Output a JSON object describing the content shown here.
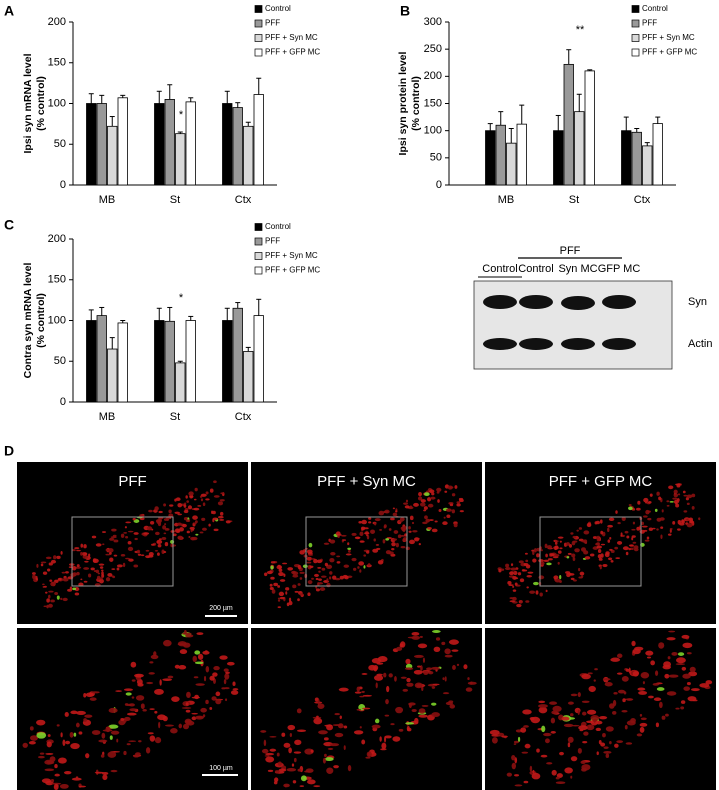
{
  "chart_data": [
    {
      "type": "bar",
      "panel": "A",
      "ylabel": [
        "Ipsi syn mRNA level",
        "(% control)"
      ],
      "categories": [
        "MB",
        "St",
        "Ctx"
      ],
      "ylim": [
        0,
        200
      ],
      "yticks": [
        0,
        50,
        100,
        150,
        200
      ],
      "annotations": [
        "*"
      ],
      "series": [
        {
          "name": "Control",
          "color": "#000000",
          "values": [
            100,
            100,
            100
          ],
          "errors": [
            12,
            15,
            15
          ]
        },
        {
          "name": "PFF",
          "color": "#999999",
          "values": [
            100,
            105,
            95
          ],
          "errors": [
            10,
            18,
            6
          ]
        },
        {
          "name": "PFF + Syn MC",
          "color": "#d9d9d9",
          "values": [
            72,
            63,
            72
          ],
          "errors": [
            12,
            2,
            5
          ]
        },
        {
          "name": "PFF + GFP MC",
          "color": "#ffffff",
          "values": [
            107,
            102,
            111
          ],
          "errors": [
            3,
            5,
            20
          ]
        }
      ]
    },
    {
      "type": "bar",
      "panel": "B",
      "ylabel": [
        "Ipsi syn protein level",
        "(% control)"
      ],
      "categories": [
        "MB",
        "St",
        "Ctx"
      ],
      "ylim": [
        0,
        300
      ],
      "yticks": [
        0,
        50,
        100,
        150,
        200,
        250,
        300
      ],
      "annotations": [
        "**"
      ],
      "series": [
        {
          "name": "Control",
          "color": "#000000",
          "values": [
            100,
            100,
            100
          ],
          "errors": [
            13,
            28,
            25
          ]
        },
        {
          "name": "PFF",
          "color": "#999999",
          "values": [
            110,
            222,
            97
          ],
          "errors": [
            25,
            27,
            7
          ]
        },
        {
          "name": "PFF + Syn MC",
          "color": "#d9d9d9",
          "values": [
            77,
            135,
            72
          ],
          "errors": [
            27,
            32,
            6
          ]
        },
        {
          "name": "PFF + GFP MC",
          "color": "#ffffff",
          "values": [
            112,
            210,
            113
          ],
          "errors": [
            35,
            2,
            12
          ]
        }
      ]
    },
    {
      "type": "bar",
      "panel": "C",
      "ylabel": [
        "Contra syn mRNA level",
        "(% control)"
      ],
      "categories": [
        "MB",
        "St",
        "Ctx"
      ],
      "ylim": [
        0,
        200
      ],
      "yticks": [
        0,
        50,
        100,
        150,
        200
      ],
      "annotations": [
        "*"
      ],
      "series": [
        {
          "name": "Control",
          "color": "#000000",
          "values": [
            100,
            100,
            100
          ],
          "errors": [
            13,
            15,
            15
          ]
        },
        {
          "name": "PFF",
          "color": "#999999",
          "values": [
            106,
            99,
            115
          ],
          "errors": [
            10,
            17,
            7
          ]
        },
        {
          "name": "PFF + Syn MC",
          "color": "#d9d9d9",
          "values": [
            65,
            48,
            62
          ],
          "errors": [
            14,
            2,
            5
          ]
        },
        {
          "name": "PFF + GFP MC",
          "color": "#ffffff",
          "values": [
            97,
            100,
            106
          ],
          "errors": [
            3,
            5,
            20
          ]
        }
      ]
    }
  ],
  "blot": {
    "group": "PFF",
    "lanes": [
      "Control",
      "Control",
      "Syn MC",
      "GFP MC"
    ],
    "bands": [
      "Syn",
      "Actin"
    ]
  },
  "microscopy": {
    "panel": "D",
    "columns": [
      "PFF",
      "PFF + Syn MC",
      "PFF + GFP MC"
    ],
    "scale_bars": [
      "200 µm",
      "100 µm"
    ]
  }
}
